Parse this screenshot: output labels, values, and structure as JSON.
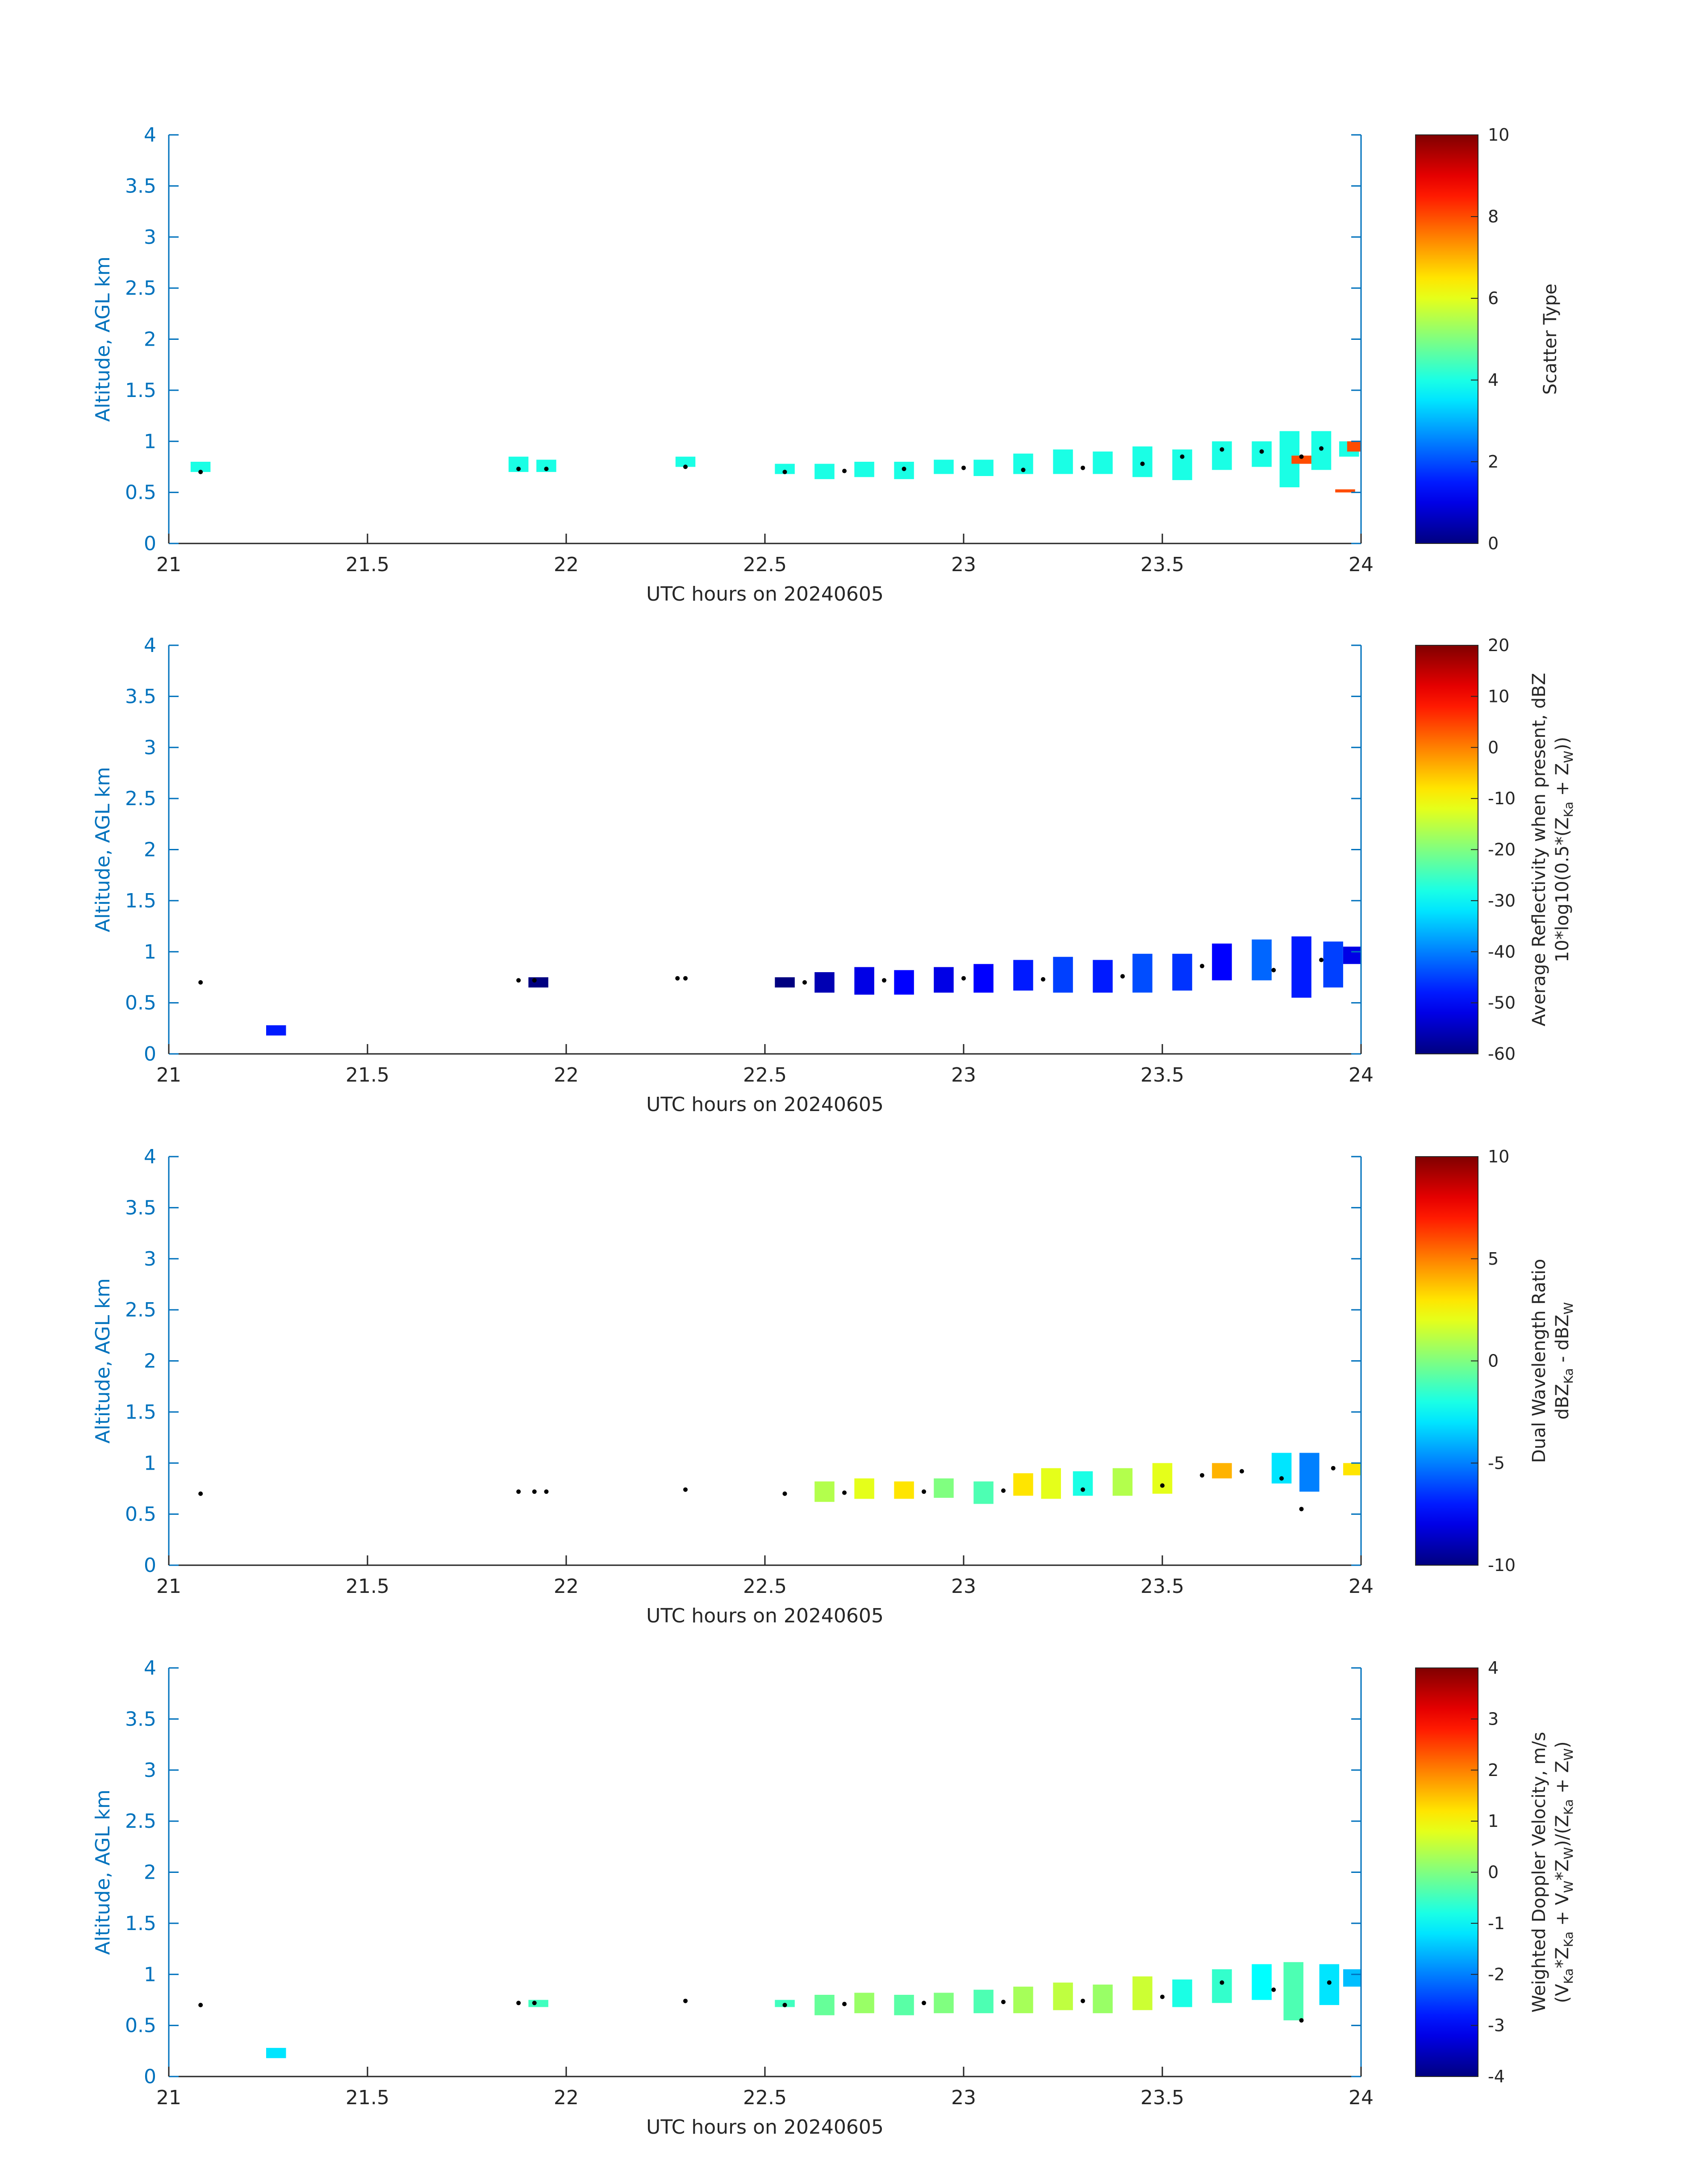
{
  "chart_data": [
    {
      "type": "heatmap",
      "field": "scatter_type",
      "xlabel": "UTC hours on 20240605",
      "ylabel": "Altitude, AGL km",
      "xlim": [
        21,
        24
      ],
      "ylim": [
        0,
        4
      ],
      "xticks": [
        "21",
        "21.5",
        "22",
        "22.5",
        "23",
        "23.5",
        "24"
      ],
      "yticks": [
        "0",
        "0.5",
        "1",
        "1.5",
        "2",
        "2.5",
        "3",
        "3.5",
        "4"
      ],
      "colorbar": {
        "label": "Scatter Type",
        "sub": [],
        "clim": [
          0,
          10
        ],
        "ticks": [
          "0",
          "2",
          "4",
          "6",
          "8",
          "10"
        ]
      },
      "cells": [
        [
          21.08,
          0.7,
          0.8,
          4
        ],
        [
          21.88,
          0.7,
          0.85,
          4
        ],
        [
          21.95,
          0.7,
          0.82,
          4
        ],
        [
          22.3,
          0.75,
          0.85,
          4
        ],
        [
          22.55,
          0.68,
          0.78,
          4
        ],
        [
          22.65,
          0.63,
          0.78,
          4
        ],
        [
          22.75,
          0.65,
          0.8,
          4
        ],
        [
          22.85,
          0.63,
          0.8,
          4
        ],
        [
          22.95,
          0.68,
          0.82,
          4
        ],
        [
          23.05,
          0.66,
          0.82,
          4
        ],
        [
          23.15,
          0.68,
          0.88,
          4
        ],
        [
          23.25,
          0.68,
          0.92,
          4
        ],
        [
          23.35,
          0.68,
          0.9,
          4
        ],
        [
          23.45,
          0.65,
          0.95,
          4
        ],
        [
          23.55,
          0.62,
          0.92,
          4
        ],
        [
          23.65,
          0.72,
          1.0,
          4
        ],
        [
          23.75,
          0.75,
          1.0,
          4
        ],
        [
          23.82,
          0.55,
          1.1,
          4
        ],
        [
          23.9,
          0.72,
          1.1,
          4
        ],
        [
          23.97,
          0.85,
          1.0,
          4
        ],
        [
          23.85,
          0.78,
          0.86,
          8
        ],
        [
          23.96,
          0.5,
          0.53,
          8
        ],
        [
          23.99,
          0.9,
          1.0,
          8
        ]
      ],
      "dots": [
        [
          21.08,
          0.7
        ],
        [
          21.88,
          0.73
        ],
        [
          21.95,
          0.73
        ],
        [
          22.3,
          0.75
        ],
        [
          22.55,
          0.7
        ],
        [
          22.7,
          0.71
        ],
        [
          22.85,
          0.73
        ],
        [
          23.0,
          0.74
        ],
        [
          23.15,
          0.72
        ],
        [
          23.3,
          0.74
        ],
        [
          23.45,
          0.78
        ],
        [
          23.55,
          0.85
        ],
        [
          23.65,
          0.92
        ],
        [
          23.75,
          0.9
        ],
        [
          23.85,
          0.85
        ],
        [
          23.9,
          0.93
        ]
      ]
    },
    {
      "type": "heatmap",
      "field": "average_reflectivity",
      "xlabel": "UTC hours on 20240605",
      "ylabel": "Altitude, AGL km",
      "xlim": [
        21,
        24
      ],
      "ylim": [
        0,
        4
      ],
      "xticks": [
        "21",
        "21.5",
        "22",
        "22.5",
        "23",
        "23.5",
        "24"
      ],
      "yticks": [
        "0",
        "0.5",
        "1",
        "1.5",
        "2",
        "2.5",
        "3",
        "3.5",
        "4"
      ],
      "colorbar": {
        "label": "Average Reflectivity when present, dBZ",
        "sub": [
          {
            "t": "10*log10(0.5*(Z",
            "s": ""
          },
          {
            "t": "Ka",
            "s": "sub"
          },
          {
            "t": " + Z",
            "s": ""
          },
          {
            "t": "W",
            "s": "sub"
          },
          {
            "t": "))",
            "s": ""
          }
        ],
        "clim": [
          -60,
          20
        ],
        "ticks": [
          "-60",
          "-50",
          "-40",
          "-30",
          "-20",
          "-10",
          "0",
          "10",
          "20"
        ]
      },
      "cells": [
        [
          21.27,
          0.18,
          0.28,
          -48
        ],
        [
          21.93,
          0.65,
          0.75,
          -60
        ],
        [
          22.55,
          0.65,
          0.75,
          -60
        ],
        [
          22.65,
          0.6,
          0.8,
          -56
        ],
        [
          22.75,
          0.58,
          0.85,
          -52
        ],
        [
          22.85,
          0.58,
          0.82,
          -50
        ],
        [
          22.95,
          0.6,
          0.85,
          -52
        ],
        [
          23.05,
          0.6,
          0.88,
          -50
        ],
        [
          23.15,
          0.62,
          0.92,
          -48
        ],
        [
          23.25,
          0.6,
          0.95,
          -45
        ],
        [
          23.35,
          0.6,
          0.92,
          -48
        ],
        [
          23.45,
          0.6,
          0.98,
          -44
        ],
        [
          23.55,
          0.62,
          0.98,
          -46
        ],
        [
          23.65,
          0.72,
          1.08,
          -50
        ],
        [
          23.75,
          0.72,
          1.12,
          -42
        ],
        [
          23.85,
          0.55,
          1.15,
          -48
        ],
        [
          23.93,
          0.65,
          1.1,
          -45
        ],
        [
          23.98,
          0.88,
          1.05,
          -52
        ]
      ],
      "dots": [
        [
          21.08,
          0.7
        ],
        [
          21.88,
          0.72
        ],
        [
          21.92,
          0.72
        ],
        [
          22.28,
          0.74
        ],
        [
          22.3,
          0.74
        ],
        [
          22.6,
          0.7
        ],
        [
          22.8,
          0.72
        ],
        [
          23.0,
          0.74
        ],
        [
          23.2,
          0.73
        ],
        [
          23.4,
          0.76
        ],
        [
          23.6,
          0.86
        ],
        [
          23.78,
          0.82
        ],
        [
          23.9,
          0.92
        ]
      ]
    },
    {
      "type": "heatmap",
      "field": "dual_wavelength_ratio",
      "xlabel": "UTC hours on 20240605",
      "ylabel": "Altitude, AGL km",
      "xlim": [
        21,
        24
      ],
      "ylim": [
        0,
        4
      ],
      "xticks": [
        "21",
        "21.5",
        "22",
        "22.5",
        "23",
        "23.5",
        "24"
      ],
      "yticks": [
        "0",
        "0.5",
        "1",
        "1.5",
        "2",
        "2.5",
        "3",
        "3.5",
        "4"
      ],
      "colorbar": {
        "label": "Dual Wavelength Ratio",
        "sub": [
          {
            "t": "dBZ",
            "s": ""
          },
          {
            "t": "Ka",
            "s": "sub"
          },
          {
            "t": " - dBZ",
            "s": ""
          },
          {
            "t": "W",
            "s": "sub"
          }
        ],
        "clim": [
          -10,
          10
        ],
        "ticks": [
          "-10",
          "-5",
          "0",
          "5",
          "10"
        ]
      },
      "cells": [
        [
          22.65,
          0.62,
          0.82,
          1
        ],
        [
          22.75,
          0.65,
          0.85,
          2
        ],
        [
          22.85,
          0.65,
          0.82,
          3
        ],
        [
          22.95,
          0.66,
          0.85,
          0
        ],
        [
          23.05,
          0.6,
          0.82,
          -1
        ],
        [
          23.15,
          0.68,
          0.9,
          3
        ],
        [
          23.22,
          0.65,
          0.95,
          2
        ],
        [
          23.3,
          0.68,
          0.92,
          -2
        ],
        [
          23.4,
          0.68,
          0.95,
          1
        ],
        [
          23.5,
          0.7,
          1.0,
          2
        ],
        [
          23.65,
          0.85,
          1.0,
          4
        ],
        [
          23.8,
          0.8,
          1.1,
          -3
        ],
        [
          23.87,
          0.72,
          1.1,
          -5
        ],
        [
          23.98,
          0.88,
          1.0,
          3
        ]
      ],
      "dots": [
        [
          21.08,
          0.7
        ],
        [
          21.88,
          0.72
        ],
        [
          21.92,
          0.72
        ],
        [
          21.95,
          0.72
        ],
        [
          22.3,
          0.74
        ],
        [
          22.55,
          0.7
        ],
        [
          22.7,
          0.71
        ],
        [
          22.9,
          0.72
        ],
        [
          23.1,
          0.73
        ],
        [
          23.3,
          0.74
        ],
        [
          23.5,
          0.78
        ],
        [
          23.6,
          0.88
        ],
        [
          23.7,
          0.92
        ],
        [
          23.8,
          0.85
        ],
        [
          23.85,
          0.55
        ],
        [
          23.93,
          0.95
        ]
      ]
    },
    {
      "type": "heatmap",
      "field": "weighted_doppler_velocity",
      "xlabel": "UTC hours on 20240605",
      "ylabel": "Altitude, AGL km",
      "xlim": [
        21,
        24
      ],
      "ylim": [
        0,
        4
      ],
      "xticks": [
        "21",
        "21.5",
        "22",
        "22.5",
        "23",
        "23.5",
        "24"
      ],
      "yticks": [
        "0",
        "0.5",
        "1",
        "1.5",
        "2",
        "2.5",
        "3",
        "3.5",
        "4"
      ],
      "colorbar": {
        "label": "Weighted Doppler Velocity, m/s",
        "sub": [
          {
            "t": "(V",
            "s": ""
          },
          {
            "t": "Ka",
            "s": "sub"
          },
          {
            "t": "*Z",
            "s": ""
          },
          {
            "t": "Ka",
            "s": "sub"
          },
          {
            "t": " + V",
            "s": ""
          },
          {
            "t": "W",
            "s": "sub"
          },
          {
            "t": "*Z",
            "s": ""
          },
          {
            "t": "W",
            "s": "sub"
          },
          {
            "t": ")/(Z",
            "s": ""
          },
          {
            "t": "Ka",
            "s": "sub"
          },
          {
            "t": " + Z",
            "s": ""
          },
          {
            "t": "W",
            "s": "sub"
          },
          {
            "t": ")",
            "s": ""
          }
        ],
        "clim": [
          -4,
          4
        ],
        "ticks": [
          "-4",
          "-3",
          "-2",
          "-1",
          "0",
          "1",
          "2",
          "3",
          "4"
        ]
      },
      "cells": [
        [
          21.27,
          0.18,
          0.28,
          -1.2
        ],
        [
          21.93,
          0.68,
          0.75,
          -0.5
        ],
        [
          22.55,
          0.68,
          0.75,
          -0.5
        ],
        [
          22.65,
          0.6,
          0.8,
          -0.2
        ],
        [
          22.75,
          0.62,
          0.82,
          0.2
        ],
        [
          22.85,
          0.6,
          0.8,
          -0.3
        ],
        [
          22.95,
          0.62,
          0.82,
          0.0
        ],
        [
          23.05,
          0.62,
          0.85,
          -0.4
        ],
        [
          23.15,
          0.62,
          0.88,
          0.3
        ],
        [
          23.25,
          0.65,
          0.92,
          0.5
        ],
        [
          23.35,
          0.62,
          0.9,
          0.2
        ],
        [
          23.45,
          0.65,
          0.98,
          0.6
        ],
        [
          23.55,
          0.68,
          0.95,
          -0.8
        ],
        [
          23.65,
          0.72,
          1.05,
          -0.6
        ],
        [
          23.75,
          0.75,
          1.1,
          -1.0
        ],
        [
          23.83,
          0.55,
          1.12,
          -0.4
        ],
        [
          23.92,
          0.7,
          1.1,
          -1.2
        ],
        [
          23.98,
          0.88,
          1.05,
          -1.5
        ]
      ],
      "dots": [
        [
          21.08,
          0.7
        ],
        [
          21.88,
          0.72
        ],
        [
          21.92,
          0.72
        ],
        [
          22.3,
          0.74
        ],
        [
          22.55,
          0.7
        ],
        [
          22.7,
          0.71
        ],
        [
          22.9,
          0.72
        ],
        [
          23.1,
          0.73
        ],
        [
          23.3,
          0.74
        ],
        [
          23.5,
          0.78
        ],
        [
          23.65,
          0.92
        ],
        [
          23.78,
          0.85
        ],
        [
          23.85,
          0.55
        ],
        [
          23.92,
          0.92
        ]
      ]
    }
  ]
}
